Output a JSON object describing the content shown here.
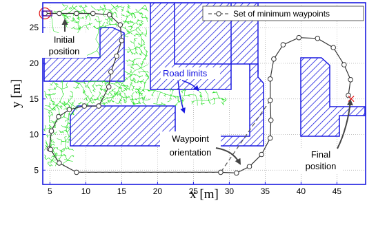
{
  "chart_data": {
    "type": "scatter",
    "xlabel": "x [m]",
    "ylabel": "y [m]",
    "xlim": [
      4,
      49
    ],
    "ylim": [
      3,
      28.5
    ],
    "xticks": [
      5,
      10,
      15,
      20,
      25,
      30,
      35,
      40,
      45
    ],
    "yticks": [
      5,
      10,
      15,
      20,
      25
    ],
    "grid": true,
    "legend": {
      "placement": "top-right",
      "entries": [
        "Set of minimum waypoints"
      ]
    },
    "series": [
      {
        "name": "Set of minimum waypoints",
        "color": "#333333",
        "x": [
          4.3,
          6.3,
          8.7,
          11.0,
          13.3,
          14.8,
          15.0,
          14.3,
          13.5,
          13.2,
          11.8,
          9.8,
          7.7,
          6.2,
          5.2,
          4.9,
          5.1,
          6.3,
          8.7,
          28.8,
          31.0,
          32.8,
          34.5,
          35.7,
          35.8,
          35.7,
          35.7,
          36.2,
          37.5,
          39.7,
          42.3,
          44.5,
          46.0,
          46.9,
          46.6
        ],
        "y": [
          27.0,
          27.0,
          27.0,
          27.0,
          26.8,
          25.4,
          23.2,
          21.0,
          18.8,
          16.7,
          14.0,
          14.0,
          13.5,
          12.5,
          10.5,
          8.0,
          7.9,
          6.0,
          4.7,
          4.7,
          4.6,
          5.5,
          7.2,
          9.5,
          12.0,
          14.8,
          17.8,
          20.6,
          22.6,
          23.6,
          23.5,
          22.2,
          19.8,
          17.7,
          15.5
        ]
      }
    ],
    "minimum_path_line": {
      "style": "dashed",
      "color": "#555555",
      "x": [
        8.7,
        28.8,
        35.7,
        35.7,
        36.2
      ],
      "y": [
        4.7,
        4.7,
        14.8,
        17.8,
        20.6
      ]
    },
    "initial_position": {
      "x": 4.3,
      "y": 27.0
    },
    "final_position": {
      "x": 46.6,
      "y": 15.5
    },
    "annotations": [
      "Initial position",
      "Road limits",
      "Waypoint orientation",
      "Final position"
    ]
  },
  "colors": {
    "road_limit_fill": "#1a1ae0",
    "tree": "#22e022",
    "waypoint": "#333333",
    "frame": "#1a1ae0",
    "marker": "#e01010"
  },
  "labels": {
    "xlabel": "x [m]",
    "ylabel": "y [m]",
    "legend": "Set of minimum waypoints",
    "initial_line1": "Initial",
    "initial_line2": "position",
    "road_limits": "Road limits",
    "orientation_line1": "Waypoint",
    "orientation_line2": "orientation",
    "final_line1": "Final",
    "final_line2": "position"
  }
}
